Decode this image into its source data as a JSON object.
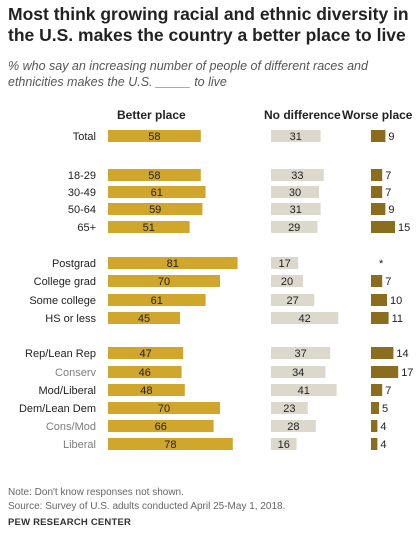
{
  "title": "Most think growing racial and ethnic diversity in the U.S. makes the country a better place to live",
  "subtitle": "% who say an increasing number of people of different races and ethnicities makes the U.S. _____ to live",
  "chart_data": {
    "type": "bar",
    "orientation": "horizontal",
    "columns": [
      "Better place",
      "No difference",
      "Worse place"
    ],
    "colors": {
      "better": "#d1a62c",
      "nodiff": "#dcd8cc",
      "worse": "#8a6d1f",
      "label_dark": "#222222",
      "label_gray": "#7d7d7d"
    },
    "rows": [
      {
        "label": "Total",
        "label_style": "dark",
        "better": 58,
        "nodiff": 31,
        "worse": 9,
        "worse_label": "9"
      },
      {
        "label": "18-29",
        "label_style": "dark",
        "better": 58,
        "nodiff": 33,
        "worse": 7,
        "worse_label": "7"
      },
      {
        "label": "30-49",
        "label_style": "dark",
        "better": 61,
        "nodiff": 30,
        "worse": 7,
        "worse_label": "7"
      },
      {
        "label": "50-64",
        "label_style": "dark",
        "better": 59,
        "nodiff": 31,
        "worse": 9,
        "worse_label": "9"
      },
      {
        "label": "65+",
        "label_style": "dark",
        "better": 51,
        "nodiff": 29,
        "worse": 15,
        "worse_label": "15"
      },
      {
        "label": "Postgrad",
        "label_style": "dark",
        "better": 81,
        "nodiff": 17,
        "worse": 0,
        "worse_label": "*"
      },
      {
        "label": "College grad",
        "label_style": "dark",
        "better": 70,
        "nodiff": 20,
        "worse": 7,
        "worse_label": "7"
      },
      {
        "label": "Some college",
        "label_style": "dark",
        "better": 61,
        "nodiff": 27,
        "worse": 10,
        "worse_label": "10"
      },
      {
        "label": "HS or less",
        "label_style": "dark",
        "better": 45,
        "nodiff": 42,
        "worse": 11,
        "worse_label": "11"
      },
      {
        "label": "Rep/Lean Rep",
        "label_style": "dark",
        "better": 47,
        "nodiff": 37,
        "worse": 14,
        "worse_label": "14"
      },
      {
        "label": "Conserv",
        "label_style": "gray",
        "better": 46,
        "nodiff": 34,
        "worse": 17,
        "worse_label": "17"
      },
      {
        "label": "Mod/Liberal",
        "label_style": "dark",
        "better": 48,
        "nodiff": 41,
        "worse": 7,
        "worse_label": "7"
      },
      {
        "label": "Dem/Lean Dem",
        "label_style": "dark",
        "better": 70,
        "nodiff": 23,
        "worse": 5,
        "worse_label": "5"
      },
      {
        "label": "Cons/Mod",
        "label_style": "gray",
        "better": 66,
        "nodiff": 28,
        "worse": 4,
        "worse_label": "4"
      },
      {
        "label": "Liberal",
        "label_style": "gray",
        "better": 78,
        "nodiff": 16,
        "worse": 4,
        "worse_label": "4"
      }
    ]
  },
  "notes": {
    "note": "Note: Don't know responses not shown.",
    "source": "Source: Survey of U.S. adults conducted April 25-May 1, 2018."
  },
  "brand": "PEW RESEARCH CENTER"
}
